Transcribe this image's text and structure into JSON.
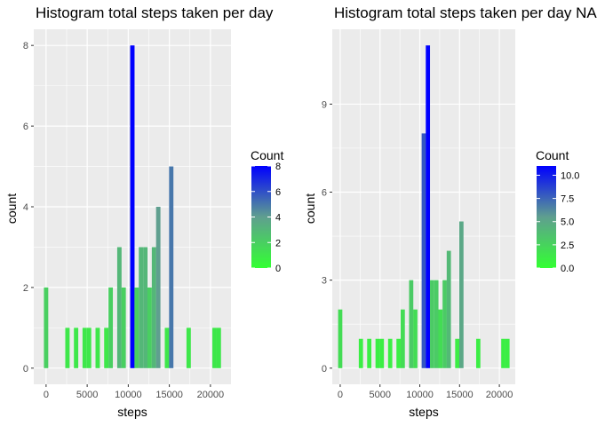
{
  "chart_data": [
    {
      "type": "bar",
      "title": "Histogram total steps taken per day",
      "xlabel": "steps",
      "ylabel": "count",
      "xlim": [
        -1500,
        22500
      ],
      "ylim": [
        -0.4,
        8.4
      ],
      "xticks": [
        0,
        5000,
        10000,
        15000,
        20000
      ],
      "xtick_labels": [
        "0",
        "5000",
        "10000",
        "15000",
        "20000"
      ],
      "yticks": [
        0,
        2,
        4,
        6,
        8
      ],
      "ytick_labels": [
        "0",
        "2",
        "4",
        "6",
        "8"
      ],
      "bin_width": 530,
      "bin_centers": [
        0,
        2600,
        3650,
        4700,
        5230,
        6280,
        7330,
        7860,
        8920,
        9440,
        10500,
        11020,
        11550,
        12080,
        12600,
        13130,
        13650,
        14710,
        15230,
        17350,
        20500,
        21020
      ],
      "values": [
        2,
        1,
        1,
        1,
        1,
        1,
        1,
        2,
        3,
        2,
        8,
        2,
        3,
        3,
        2,
        3,
        4,
        1,
        5,
        1,
        1,
        1
      ],
      "legend": {
        "title": "Count",
        "range": [
          0,
          8
        ],
        "ticks": [
          0,
          2,
          4,
          6,
          8
        ],
        "tick_labels": [
          "0",
          "2",
          "4",
          "6",
          "8"
        ],
        "placement": "right"
      },
      "colors": {
        "low": "#33ff33",
        "high": "#0000ff",
        "panel": "#ebebeb",
        "grid": "#ffffff"
      }
    },
    {
      "type": "bar",
      "title": "Histogram total steps taken per day NA",
      "xlabel": "steps",
      "ylabel": "count",
      "xlim": [
        -1000,
        22000
      ],
      "ylim": [
        -0.55,
        11.55
      ],
      "xticks": [
        0,
        5000,
        10000,
        15000,
        20000
      ],
      "xtick_labels": [
        "0",
        "5000",
        "10000",
        "15000",
        "20000"
      ],
      "yticks": [
        0,
        3,
        6,
        9
      ],
      "ytick_labels": [
        "0",
        "3",
        "6",
        "9"
      ],
      "bin_width": 530,
      "bin_centers": [
        0,
        2600,
        3650,
        4700,
        5230,
        6280,
        7330,
        7860,
        8920,
        9440,
        10500,
        11020,
        11550,
        12080,
        12600,
        13130,
        13650,
        14710,
        15230,
        17350,
        20500,
        21020
      ],
      "values": [
        2,
        1,
        1,
        1,
        1,
        1,
        1,
        2,
        3,
        2,
        8,
        11,
        3,
        3,
        2,
        3,
        4,
        1,
        5,
        1,
        1,
        1
      ],
      "legend": {
        "title": "Count",
        "range": [
          0,
          11
        ],
        "ticks": [
          0,
          2.5,
          5,
          7.5,
          10
        ],
        "tick_labels": [
          "0.0",
          "2.5",
          "5.0",
          "7.5",
          "10.0"
        ],
        "placement": "right"
      },
      "colors": {
        "low": "#33ff33",
        "high": "#0000ff",
        "panel": "#ebebeb",
        "grid": "#ffffff"
      }
    }
  ]
}
